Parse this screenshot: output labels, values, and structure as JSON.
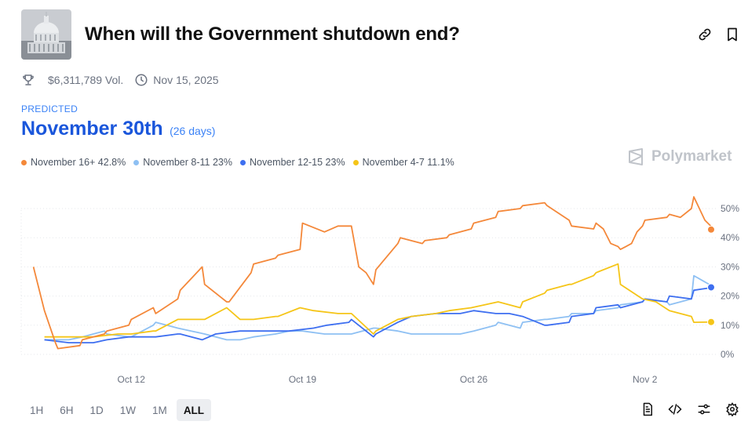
{
  "header": {
    "title": "When will the Government shutdown end?"
  },
  "meta": {
    "volume": "$6,311,789 Vol.",
    "date": "Nov 15, 2025"
  },
  "prediction": {
    "label": "PREDICTED",
    "value": "November 30th",
    "days": "(26 days)"
  },
  "brand": {
    "name": "Polymarket"
  },
  "icons": [
    "capitol-dome-image",
    "link-icon",
    "bookmark-icon",
    "trophy-icon",
    "clock-icon",
    "polymarket-logo-icon",
    "document-icon",
    "code-icon",
    "sliders-icon",
    "gear-icon"
  ],
  "legend": [
    {
      "label": "November 16+ 42.8%",
      "color": "#f4883a"
    },
    {
      "label": "November 8-11 23%",
      "color": "#8ec0f3"
    },
    {
      "label": "November 12-15 23%",
      "color": "#3e6ff0"
    },
    {
      "label": "November 4-7 11.1%",
      "color": "#f5c518"
    }
  ],
  "ranges": [
    "1H",
    "6H",
    "1D",
    "1W",
    "1M",
    "ALL"
  ],
  "active_range": "ALL",
  "chart_data": {
    "type": "line",
    "x_unit": "date",
    "x_ticks": [
      "Oct 12",
      "Oct 19",
      "Oct 26",
      "Nov 2"
    ],
    "y_ticks": [
      "0%",
      "10%",
      "20%",
      "30%",
      "40%",
      "50%"
    ],
    "ylim": [
      0,
      55
    ],
    "grid": true,
    "series": [
      {
        "name": "November 16+",
        "color": "#f4883a",
        "points": [
          [
            "Oct 8",
            30
          ],
          [
            "Oct 8",
            15
          ],
          [
            "Oct 8",
            4
          ],
          [
            "Oct 9",
            2
          ],
          [
            "Oct 9",
            3
          ],
          [
            "Oct 10",
            5
          ],
          [
            "Oct 10",
            7
          ],
          [
            "Oct 11",
            8
          ],
          [
            "Oct 11",
            10
          ],
          [
            "Oct 12",
            12
          ],
          [
            "Oct 12",
            16
          ],
          [
            "Oct 13",
            14
          ],
          [
            "Oct 13",
            19
          ],
          [
            "Oct 14",
            22
          ],
          [
            "Oct 14",
            30
          ],
          [
            "Oct 15",
            24
          ],
          [
            "Oct 15",
            18
          ],
          [
            "Oct 16",
            18
          ],
          [
            "Oct 16",
            28
          ],
          [
            "Oct 17",
            31
          ],
          [
            "Oct 17",
            33
          ],
          [
            "Oct 18",
            34
          ],
          [
            "Oct 18",
            36
          ],
          [
            "Oct 19",
            45
          ],
          [
            "Oct 19",
            42
          ],
          [
            "Oct 20",
            44
          ],
          [
            "Oct 21",
            44
          ],
          [
            "Oct 21",
            30
          ],
          [
            "Oct 21",
            28
          ],
          [
            "Oct 21",
            24
          ],
          [
            "Oct 22",
            29
          ],
          [
            "Oct 22",
            38
          ],
          [
            "Oct 23",
            40
          ],
          [
            "Oct 23",
            38
          ],
          [
            "Oct 24",
            39
          ],
          [
            "Oct 24",
            40
          ],
          [
            "Oct 25",
            41
          ],
          [
            "Oct 25",
            43
          ],
          [
            "Oct 26",
            45
          ],
          [
            "Oct 26",
            47
          ],
          [
            "Oct 27",
            49
          ],
          [
            "Oct 27",
            50
          ],
          [
            "Oct 28",
            51
          ],
          [
            "Oct 28",
            52
          ],
          [
            "Oct 29",
            51
          ],
          [
            "Oct 29",
            46
          ],
          [
            "Oct 30",
            44
          ],
          [
            "Oct 30",
            43
          ],
          [
            "Oct 31",
            45
          ],
          [
            "Oct 31",
            43
          ],
          [
            "Oct 31",
            38
          ],
          [
            "Oct 31",
            37
          ],
          [
            "Nov 1",
            36
          ],
          [
            "Nov 1",
            37
          ],
          [
            "Nov 1",
            38
          ],
          [
            "Nov 1",
            42
          ],
          [
            "Nov 1",
            44
          ],
          [
            "Nov 2",
            46
          ],
          [
            "Nov 2",
            47
          ],
          [
            "Nov 3",
            48
          ],
          [
            "Nov 3",
            47
          ],
          [
            "Nov 3",
            50
          ],
          [
            "Nov 4",
            54
          ],
          [
            "Nov 4",
            46
          ],
          [
            "Nov 4",
            42.8
          ]
        ]
      },
      {
        "name": "November 8-11",
        "color": "#8ec0f3",
        "points": [
          [
            "Oct 8",
            5
          ],
          [
            "Oct 9",
            5
          ],
          [
            "Oct 10",
            6
          ],
          [
            "Oct 10",
            8
          ],
          [
            "Oct 11",
            7
          ],
          [
            "Oct 11",
            6
          ],
          [
            "Oct 12",
            6
          ],
          [
            "Oct 12",
            10
          ],
          [
            "Oct 13",
            11
          ],
          [
            "Oct 13",
            10
          ],
          [
            "Oct 13",
            9
          ],
          [
            "Oct 14",
            8
          ],
          [
            "Oct 15",
            7
          ],
          [
            "Oct 15",
            5
          ],
          [
            "Oct 16",
            5
          ],
          [
            "Oct 17",
            6
          ],
          [
            "Oct 17",
            7
          ],
          [
            "Oct 18",
            8
          ],
          [
            "Oct 19",
            8
          ],
          [
            "Oct 19",
            7
          ],
          [
            "Oct 20",
            7
          ],
          [
            "Oct 21",
            7
          ],
          [
            "Oct 21",
            9
          ],
          [
            "Oct 22",
            9
          ],
          [
            "Oct 22",
            8
          ],
          [
            "Oct 23",
            7
          ],
          [
            "Oct 24",
            7
          ],
          [
            "Oct 25",
            7
          ],
          [
            "Oct 26",
            8
          ],
          [
            "Oct 26",
            10
          ],
          [
            "Oct 27",
            11
          ],
          [
            "Oct 27",
            9
          ],
          [
            "Oct 28",
            11
          ],
          [
            "Oct 28",
            12
          ],
          [
            "Oct 29",
            12
          ],
          [
            "Oct 29",
            13
          ],
          [
            "Oct 30",
            14
          ],
          [
            "Oct 30",
            14
          ],
          [
            "Oct 31",
            15
          ],
          [
            "Oct 31",
            16
          ],
          [
            "Nov 1",
            17
          ],
          [
            "Nov 1",
            18
          ],
          [
            "Nov 2",
            19
          ],
          [
            "Nov 2",
            18
          ],
          [
            "Nov 3",
            17
          ],
          [
            "Nov 3",
            19
          ],
          [
            "Nov 4",
            27
          ],
          [
            "Nov 4",
            23
          ]
        ]
      },
      {
        "name": "November 12-15",
        "color": "#3e6ff0",
        "points": [
          [
            "Oct 8",
            5
          ],
          [
            "Oct 9",
            4
          ],
          [
            "Oct 10",
            4
          ],
          [
            "Oct 11",
            5
          ],
          [
            "Oct 11",
            6
          ],
          [
            "Oct 12",
            6
          ],
          [
            "Oct 13",
            6
          ],
          [
            "Oct 13",
            7
          ],
          [
            "Oct 14",
            7
          ],
          [
            "Oct 14",
            5
          ],
          [
            "Oct 15",
            7
          ],
          [
            "Oct 16",
            8
          ],
          [
            "Oct 17",
            8
          ],
          [
            "Oct 18",
            8
          ],
          [
            "Oct 19",
            9
          ],
          [
            "Oct 20",
            10
          ],
          [
            "Oct 20",
            11
          ],
          [
            "Oct 21",
            12
          ],
          [
            "Oct 21",
            6
          ],
          [
            "Oct 22",
            7
          ],
          [
            "Oct 22",
            11
          ],
          [
            "Oct 23",
            13
          ],
          [
            "Oct 24",
            14
          ],
          [
            "Oct 25",
            14
          ],
          [
            "Oct 26",
            15
          ],
          [
            "Oct 26",
            14
          ],
          [
            "Oct 27",
            14
          ],
          [
            "Oct 28",
            13
          ],
          [
            "Oct 28",
            10
          ],
          [
            "Oct 29",
            10
          ],
          [
            "Oct 29",
            11
          ],
          [
            "Oct 30",
            13
          ],
          [
            "Oct 30",
            14
          ],
          [
            "Oct 31",
            16
          ],
          [
            "Oct 31",
            17
          ],
          [
            "Nov 1",
            16
          ],
          [
            "Nov 1",
            18
          ],
          [
            "Nov 2",
            19
          ],
          [
            "Nov 2",
            18
          ],
          [
            "Nov 3",
            20
          ],
          [
            "Nov 3",
            19
          ],
          [
            "Nov 4",
            22
          ],
          [
            "Nov 4",
            23
          ]
        ]
      },
      {
        "name": "November 4-7",
        "color": "#f5c518",
        "points": [
          [
            "Oct 8",
            6
          ],
          [
            "Oct 9",
            6
          ],
          [
            "Oct 10",
            6
          ],
          [
            "Oct 11",
            7
          ],
          [
            "Oct 12",
            7
          ],
          [
            "Oct 12",
            8
          ],
          [
            "Oct 13",
            8
          ],
          [
            "Oct 13",
            12
          ],
          [
            "Oct 14",
            12
          ],
          [
            "Oct 15",
            12
          ],
          [
            "Oct 15",
            16
          ],
          [
            "Oct 16",
            12
          ],
          [
            "Oct 17",
            12
          ],
          [
            "Oct 17",
            13
          ],
          [
            "Oct 18",
            13
          ],
          [
            "Oct 18",
            16
          ],
          [
            "Oct 19",
            15
          ],
          [
            "Oct 20",
            14
          ],
          [
            "Oct 21",
            14
          ],
          [
            "Oct 21",
            7
          ],
          [
            "Oct 22",
            8
          ],
          [
            "Oct 22",
            12
          ],
          [
            "Oct 23",
            13
          ],
          [
            "Oct 24",
            14
          ],
          [
            "Oct 25",
            15
          ],
          [
            "Oct 25",
            16
          ],
          [
            "Oct 26",
            17
          ],
          [
            "Oct 27",
            18
          ],
          [
            "Oct 27",
            16
          ],
          [
            "Oct 28",
            18
          ],
          [
            "Oct 28",
            21
          ],
          [
            "Oct 29",
            22
          ],
          [
            "Oct 29",
            24
          ],
          [
            "Oct 30",
            24
          ],
          [
            "Oct 30",
            27
          ],
          [
            "Oct 31",
            28
          ],
          [
            "Oct 31",
            31
          ],
          [
            "Nov 1",
            24
          ],
          [
            "Nov 1",
            19
          ],
          [
            "Nov 2",
            18
          ],
          [
            "Nov 3",
            15
          ],
          [
            "Nov 3",
            13
          ],
          [
            "Nov 4",
            11
          ],
          [
            "Nov 4",
            11.1
          ]
        ]
      }
    ]
  }
}
